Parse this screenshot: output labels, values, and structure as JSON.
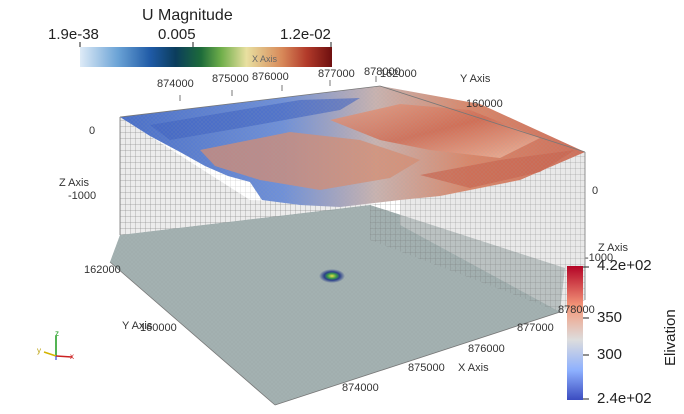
{
  "u_legend": {
    "title": "U Magnitude",
    "min_label": "1.9e-38",
    "mid_label": "0.005",
    "max_label": "1.2e-02",
    "colors": [
      "#deebf7",
      "#6ba3d6",
      "#1f5aa6",
      "#0b3d5c",
      "#1d6b3a",
      "#6fae4a",
      "#e8e0a0",
      "#d88a5a",
      "#b23a2a",
      "#6e0f0f"
    ]
  },
  "elevation_legend": {
    "title": "Elivation",
    "max_label": "4.2e+02",
    "t350": "350",
    "t300": "300",
    "min_label": "2.4e+02",
    "colors": [
      "#3b4cc0",
      "#8db0fe",
      "#dddddd",
      "#f4987a",
      "#b40426"
    ]
  },
  "axes": {
    "x_title": "X Axis",
    "y_title": "Y Axis",
    "z_title": "Z Axis",
    "top_x_ticks": [
      "874000",
      "875000",
      "876000",
      "877000",
      "878000"
    ],
    "top_y_ticks": [
      "160000",
      "162000"
    ],
    "z_left_ticks": [
      "0",
      "-1000"
    ],
    "z_right_ticks": [
      "0",
      "-1000"
    ],
    "z_right_title": "Z Axis",
    "bottom_x_ticks": [
      "874000",
      "875000",
      "876000",
      "877000",
      "878000"
    ],
    "bottom_y_ticks": [
      "162000",
      "160000"
    ],
    "obscured_label": "X Axis"
  },
  "orientation_axes": {
    "x": "x",
    "y": "y",
    "z": "z"
  }
}
